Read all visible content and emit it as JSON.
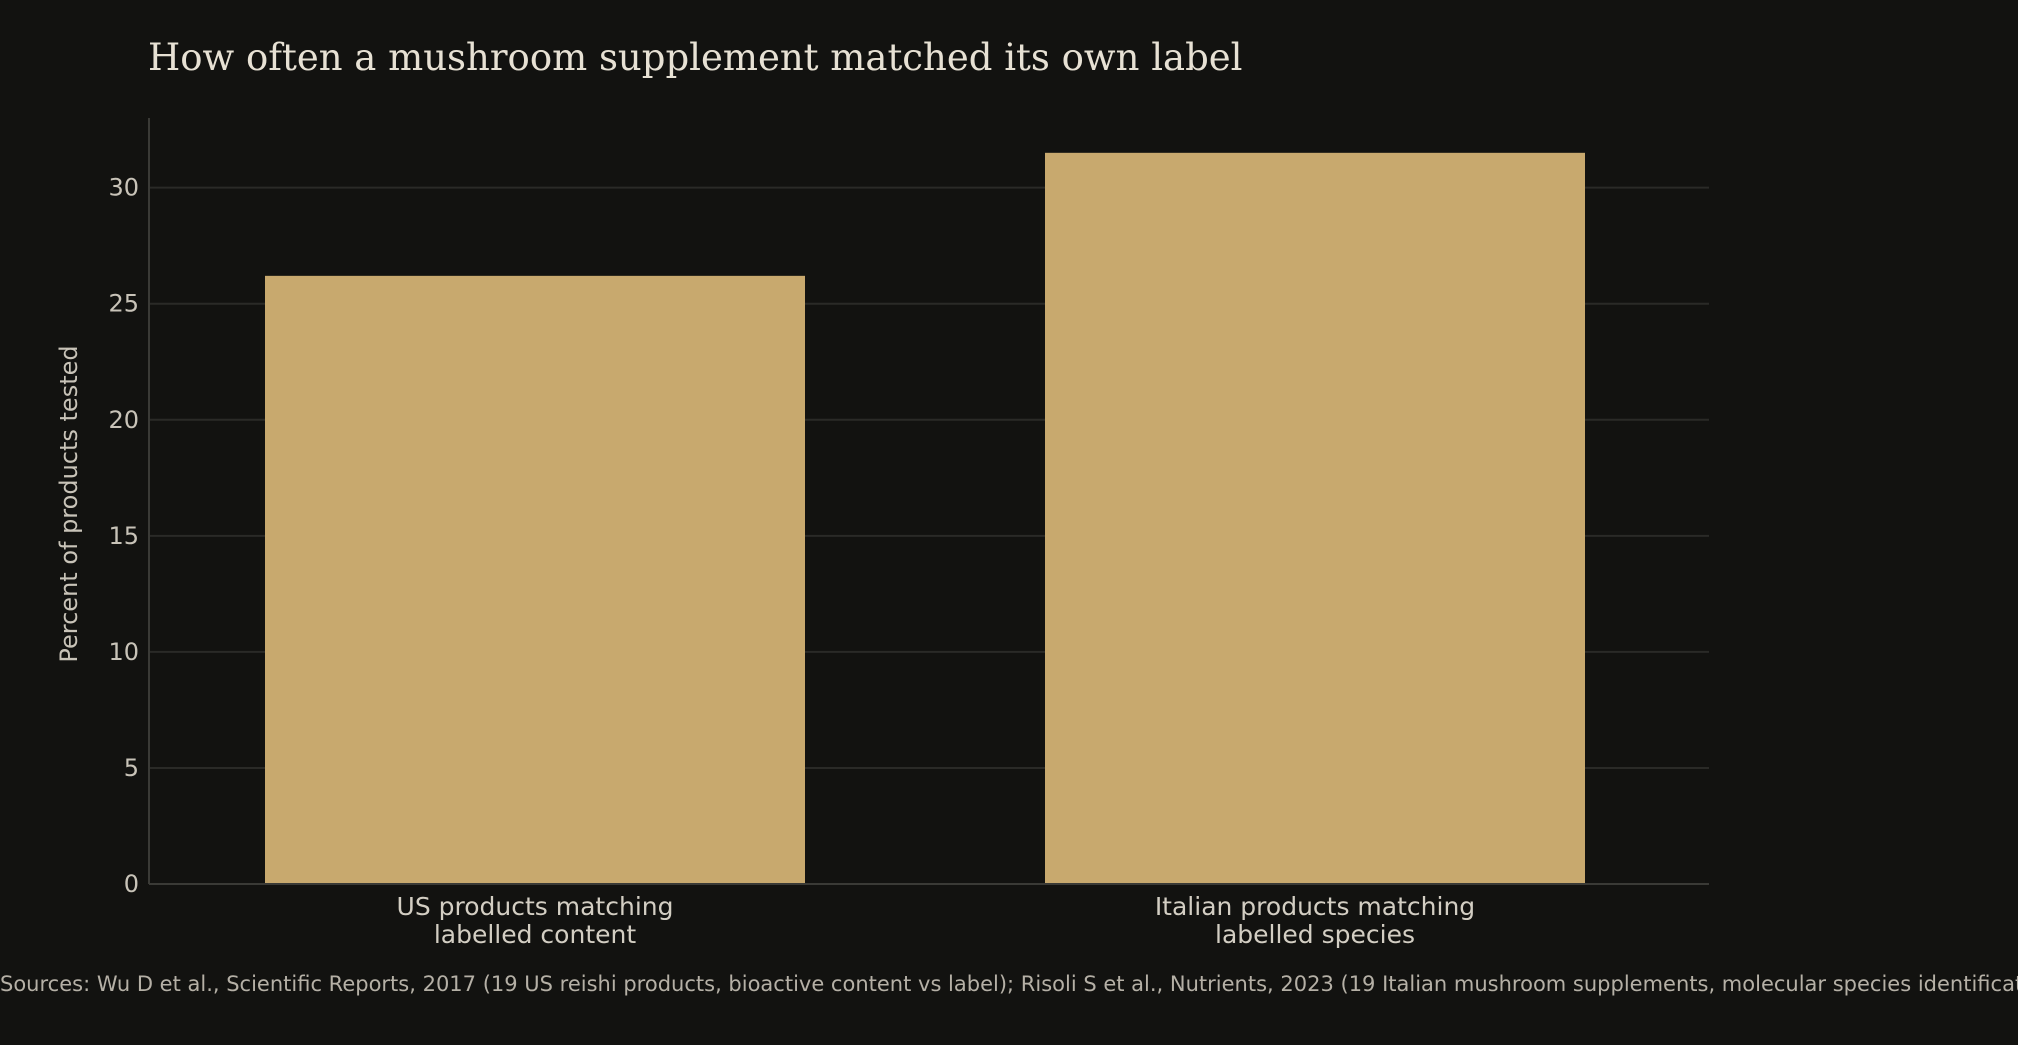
{
  "chart_data": {
    "type": "bar",
    "title": "How often a mushroom supplement matched its own label",
    "xlabel": "",
    "ylabel": "Percent of products tested",
    "categories": [
      [
        "US products matching",
        "labelled content"
      ],
      [
        "Italian products matching",
        "labelled species"
      ]
    ],
    "values": [
      26.2,
      31.5
    ],
    "ylim": [
      0,
      33
    ],
    "yticks": [
      0,
      5,
      10,
      15,
      20,
      25,
      30
    ],
    "grid": true,
    "legend": "none",
    "bar_color": "#c8a96e",
    "grid_color": "#2a2a27",
    "axis_color": "#3a3a36"
  },
  "source_note": "Sources: Wu D et al., Scientific Reports, 2017 (19 US reishi products, bioactive content vs label); Risoli S et al., Nutrients, 2023 (19 Italian mushroom supplements, molecular species identification)."
}
